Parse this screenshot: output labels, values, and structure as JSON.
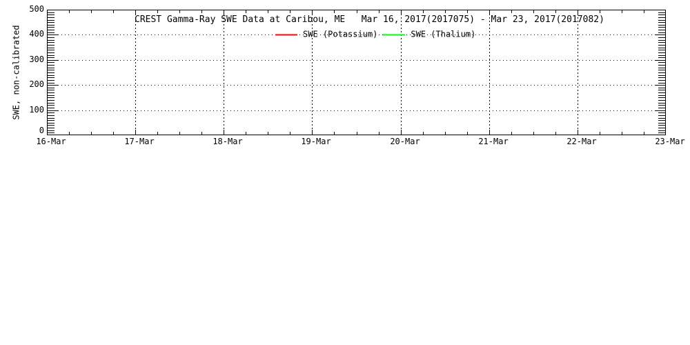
{
  "page": {
    "background_color": "#ffffff",
    "foreground_color": "#000000"
  },
  "chart_data": {
    "type": "line",
    "title": "CREST Gamma-Ray SWE Data at Caribou, ME   Mar 16, 2017(2017075) - Mar 23, 2017(2017082)",
    "ylabel": "SWE, non-calibrated",
    "xlabel": "",
    "ylim": [
      0,
      500
    ],
    "y_major_ticks": [
      0,
      100,
      200,
      300,
      400,
      500
    ],
    "y_minor_step": 10,
    "x_tick_labels": [
      "16-Mar",
      "17-Mar",
      "18-Mar",
      "19-Mar",
      "20-Mar",
      "21-Mar",
      "22-Mar",
      "23-Mar"
    ],
    "x_minor_divisions_per_day": 4,
    "grid": true,
    "grid_style": {
      "horizontal": "dotted",
      "vertical": "dashed"
    },
    "legend_position": "top-center-inside",
    "axis_color": "#000000",
    "series": [
      {
        "name": "SWE (Potassium)",
        "color": "#ff0000",
        "points": []
      },
      {
        "name": "SWE (Thalium)",
        "color": "#00ff00",
        "points": []
      }
    ]
  }
}
